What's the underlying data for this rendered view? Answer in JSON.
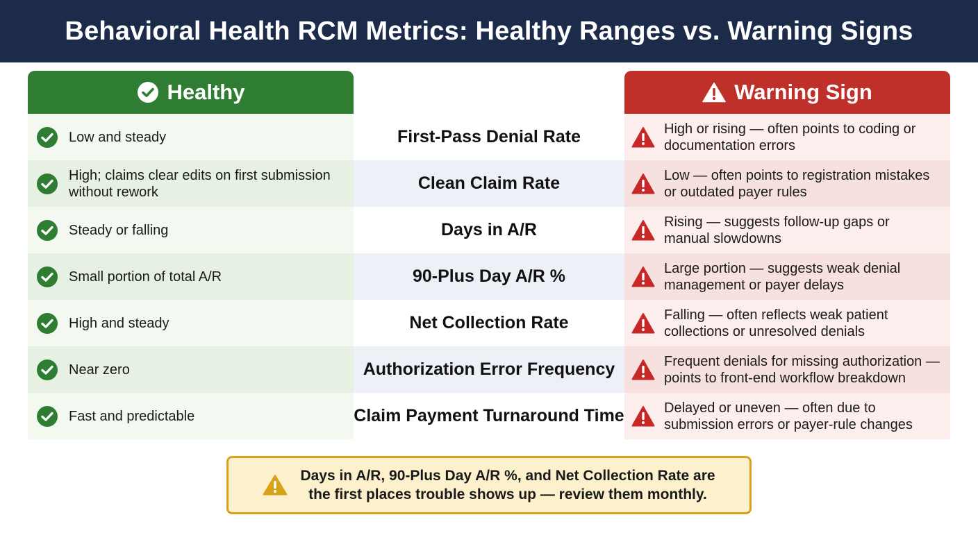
{
  "title": "Behavioral Health RCM Metrics: Healthy Ranges vs. Warning Signs",
  "columns": {
    "healthy": {
      "label": "Healthy",
      "icon": "check-circle-icon",
      "color": "#2e7d32"
    },
    "warning": {
      "label": "Warning Sign",
      "icon": "warning-triangle-icon",
      "color": "#c0302a"
    }
  },
  "rows": [
    {
      "metric": "First-Pass Denial Rate",
      "healthy": "Low and steady",
      "warning_line1": "High or rising — often points to coding or",
      "warning_line2": "documentation errors"
    },
    {
      "metric": "Clean Claim Rate",
      "healthy_line1": "High; claims clear edits on first submission",
      "healthy_line2": "without rework",
      "warning_line1": "Low — often points to registration mistakes",
      "warning_line2": "or outdated payer rules"
    },
    {
      "metric": "Days in A/R",
      "healthy": "Steady or falling",
      "warning_line1": "Rising — suggests follow-up gaps or",
      "warning_line2": "manual slowdowns"
    },
    {
      "metric": "90-Plus Day A/R %",
      "healthy": "Small portion of total A/R",
      "warning_line1": "Large portion — suggests weak denial",
      "warning_line2": "management or payer delays"
    },
    {
      "metric": "Net Collection Rate",
      "healthy": "High and steady",
      "warning_line1": "Falling — often reflects weak patient",
      "warning_line2": "collections or unresolved denials"
    },
    {
      "metric": "Authorization Error Frequency",
      "healthy": "Near zero",
      "warning_line1": "Frequent denials for missing authorization —",
      "warning_line2": "points to front-end workflow breakdown"
    },
    {
      "metric": "Claim Payment Turnaround Time",
      "healthy": "Fast and predictable",
      "warning_line1": "Delayed or uneven — often due to",
      "warning_line2": "submission errors or payer-rule changes"
    }
  ],
  "callout": {
    "icon": "warning-triangle-icon",
    "line1": "Days in A/R, 90-Plus Day A/R %, and Net Collection Rate are",
    "line2": "the first places trouble shows up — review them monthly."
  }
}
